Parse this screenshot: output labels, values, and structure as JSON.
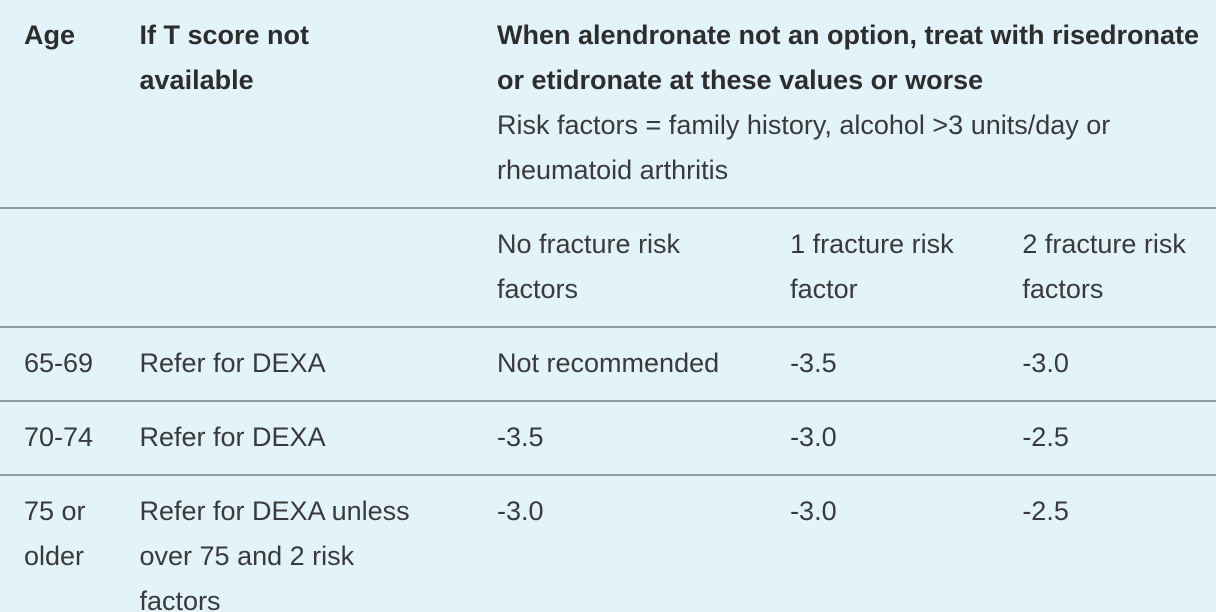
{
  "table": {
    "background_color": "#e3f3fa",
    "divider_color": "#8c9da6",
    "header": {
      "age_label": "Age",
      "tscore_label": "If T score not available",
      "treatment_title": "When alendronate not an option, treat with risedronate or etidronate at these values or worse",
      "risk_factors_note": "Risk factors = family history, alcohol >3 units/day or rheumatoid arthritis"
    },
    "subheader": {
      "no_risk": "No fracture risk factors",
      "one_risk": "1 fracture risk factor",
      "two_risk": "2 fracture risk factors"
    },
    "rows": [
      {
        "age": "65-69",
        "tscore": "Refer for DEXA",
        "no_risk": "Not recommended",
        "one_risk": "-3.5",
        "two_risk": "-3.0"
      },
      {
        "age": "70-74",
        "tscore": "Refer for DEXA",
        "no_risk": "-3.5",
        "one_risk": "-3.0",
        "two_risk": "-2.5"
      },
      {
        "age": "75 or older",
        "tscore": "Refer for DEXA unless over 75 and 2 risk factors",
        "no_risk": "-3.0",
        "one_risk": "-3.0",
        "two_risk": "-2.5"
      }
    ]
  }
}
